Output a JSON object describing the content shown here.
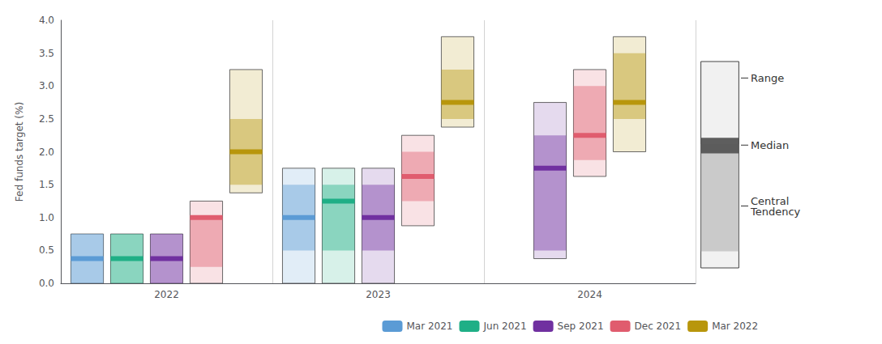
{
  "chart_data": {
    "type": "range_bar",
    "ylabel": "Fed funds target (%)",
    "categories": [
      "2022",
      "2023",
      "2024"
    ],
    "series": [
      {
        "name": "Mar 2021",
        "color": "#5b9bd5",
        "values": [
          0.375,
          1.0,
          null
        ],
        "range_low": [
          0.0,
          0.0,
          null
        ],
        "range_high": [
          0.75,
          1.75,
          null
        ],
        "ct_low": [
          0.0,
          0.5,
          null
        ],
        "ct_high": [
          0.75,
          1.5,
          null
        ]
      },
      {
        "name": "Jun 2021",
        "color": "#1faf86",
        "values": [
          0.375,
          1.25,
          null
        ],
        "range_low": [
          0.0,
          0.0,
          null
        ],
        "range_high": [
          0.75,
          1.75,
          null
        ],
        "ct_low": [
          0.0,
          0.5,
          null
        ],
        "ct_high": [
          0.75,
          1.5,
          null
        ]
      },
      {
        "name": "Sep 2021",
        "color": "#7030a0",
        "values": [
          0.375,
          1.0,
          1.75
        ],
        "range_low": [
          0.0,
          0.0,
          0.375
        ],
        "range_high": [
          0.75,
          1.75,
          2.75
        ],
        "ct_low": [
          0.0,
          0.5,
          0.5
        ],
        "ct_high": [
          0.75,
          1.5,
          2.25
        ]
      },
      {
        "name": "Dec 2021",
        "color": "#e05c6e",
        "values": [
          1.0,
          1.625,
          2.25
        ],
        "range_low": [
          0.0,
          0.875,
          1.625
        ],
        "range_high": [
          1.25,
          2.25,
          3.25
        ],
        "ct_low": [
          0.25,
          1.25,
          1.875
        ],
        "ct_high": [
          1.0,
          2.0,
          3.0
        ]
      },
      {
        "name": "Mar 2022",
        "color": "#b8960c",
        "values": [
          2.0,
          2.75,
          2.75
        ],
        "range_low": [
          1.375,
          2.375,
          2.0
        ],
        "range_high": [
          3.25,
          3.75,
          3.75
        ],
        "ct_low": [
          1.5,
          2.5,
          2.5
        ],
        "ct_high": [
          2.5,
          3.25,
          3.5
        ]
      }
    ],
    "ylim": [
      0.0,
      4.0
    ],
    "yticks": [
      {
        "value": 0.0,
        "label": "0.0"
      },
      0.5,
      {
        "value": 1.0,
        "label": "1.0"
      },
      1.5,
      {
        "value": 2.0,
        "label": "2.0"
      },
      2.5,
      {
        "value": 3.0,
        "label": "3.0"
      },
      3.5,
      {
        "value": 4.0,
        "label": "4.0"
      }
    ],
    "grid": false,
    "legend": "bottom",
    "annotations": [
      "Range",
      "Median",
      "Central\nTendency"
    ]
  }
}
